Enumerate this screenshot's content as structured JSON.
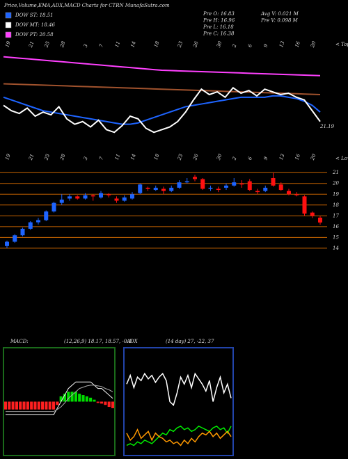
{
  "header": {
    "title": "Price,Volume,EMA,ADX,MACD Charts for CTRN  MunafaSutra.com",
    "legend": [
      {
        "text": "DOW ST: 18.51",
        "color": "#1e64ff"
      },
      {
        "text": "DOW MT: 18.46",
        "color": "#ffffff"
      },
      {
        "text": "DOW PT: 20.58",
        "color": "#ff40ff"
      }
    ],
    "info_left": [
      "Pre  O: 16.83",
      "Pre  H: 16.96",
      "Pre  L: 16.18",
      "Pre  C: 16.38"
    ],
    "info_right": [
      "Avg  V: 0.021  M",
      "Pre  V: 0.098  M"
    ]
  },
  "chart_data": [
    {
      "type": "line",
      "label": "< Tops",
      "annotation": "21.19",
      "ylim": [
        16.5,
        23.2
      ],
      "series": [
        {
          "color": "#ff40ff",
          "values": [
            22.6,
            22.55,
            22.5,
            22.45,
            22.4,
            22.35,
            22.3,
            22.25,
            22.2,
            22.15,
            22.1,
            22.05,
            22.0,
            21.95,
            21.9,
            21.85,
            21.8,
            21.75,
            21.7,
            21.65,
            21.6,
            21.58,
            21.56,
            21.54,
            21.52,
            21.5,
            21.48,
            21.46,
            21.44,
            21.42,
            21.4,
            21.38,
            21.36,
            21.34,
            21.32,
            21.3,
            21.28,
            21.26,
            21.24,
            21.22,
            21.2
          ]
        },
        {
          "color": "#a0522d",
          "values": [
            20.6,
            20.58,
            20.56,
            20.54,
            20.52,
            20.5,
            20.48,
            20.46,
            20.44,
            20.42,
            20.4,
            20.38,
            20.36,
            20.34,
            20.32,
            20.3,
            20.28,
            20.26,
            20.24,
            20.22,
            20.2,
            20.18,
            20.16,
            20.14,
            20.12,
            20.1,
            20.08,
            20.06,
            20.04,
            20.02,
            20.0,
            19.98,
            19.96,
            19.94,
            19.92,
            19.9,
            19.88,
            19.86,
            19.84,
            19.82,
            19.8
          ]
        },
        {
          "color": "#1e64ff",
          "values": [
            19.6,
            19.4,
            19.2,
            19.0,
            18.8,
            18.6,
            18.5,
            18.4,
            18.3,
            18.2,
            18.1,
            18.0,
            17.9,
            17.8,
            17.7,
            17.6,
            17.6,
            17.7,
            17.9,
            18.1,
            18.3,
            18.5,
            18.7,
            18.9,
            19.0,
            19.1,
            19.2,
            19.3,
            19.4,
            19.5,
            19.6,
            19.6,
            19.6,
            19.6,
            19.7,
            19.7,
            19.6,
            19.5,
            19.3,
            19.0,
            18.5
          ]
        },
        {
          "color": "#ffffff",
          "values": [
            19.0,
            18.6,
            18.4,
            18.8,
            18.2,
            18.5,
            18.3,
            18.9,
            18.0,
            17.6,
            17.8,
            17.4,
            17.9,
            17.2,
            17.0,
            17.5,
            18.2,
            18.0,
            17.3,
            17.0,
            17.2,
            17.4,
            17.8,
            18.5,
            19.4,
            20.2,
            19.8,
            20.0,
            19.6,
            20.3,
            19.9,
            20.1,
            19.7,
            20.2,
            20.0,
            19.8,
            19.9,
            19.6,
            19.4,
            18.6,
            17.8
          ]
        }
      ]
    },
    {
      "type": "candlestick",
      "label": "< Lows",
      "up_color": "#1e64ff",
      "down_color": "#ff1010",
      "grid_color": "#c86400",
      "x": [
        "19",
        null,
        null,
        "21",
        null,
        "25",
        null,
        "28",
        null,
        null,
        "3",
        null,
        "7",
        null,
        "11",
        null,
        "14",
        null,
        null,
        "18",
        null,
        null,
        "23",
        null,
        "26",
        null,
        null,
        "30",
        null,
        "2",
        null,
        "6",
        null,
        "9",
        null,
        "13",
        null,
        "16",
        null,
        "20",
        null
      ],
      "open": [
        14.2,
        14.6,
        15.2,
        15.8,
        16.4,
        16.6,
        17.4,
        18.2,
        18.6,
        18.8,
        18.6,
        18.9,
        18.7,
        19.0,
        18.6,
        18.4,
        18.6,
        19.1,
        19.6,
        19.4,
        19.5,
        19.3,
        19.6,
        20.1,
        20.6,
        20.4,
        19.5,
        19.5,
        19.6,
        19.8,
        20.0,
        20.2,
        19.3,
        19.3,
        20.5,
        19.9,
        19.3,
        19.0,
        18.8,
        17.3,
        16.83
      ],
      "high": [
        14.7,
        15.3,
        15.9,
        16.5,
        16.8,
        17.5,
        18.3,
        19.0,
        19.0,
        18.9,
        19.1,
        19.0,
        19.3,
        19.1,
        18.8,
        18.9,
        19.2,
        20.0,
        19.7,
        19.8,
        19.7,
        19.8,
        20.3,
        20.5,
        20.8,
        20.5,
        19.8,
        19.7,
        20.0,
        20.5,
        20.3,
        20.4,
        19.5,
        19.8,
        21.0,
        20.1,
        19.5,
        19.2,
        18.9,
        17.4,
        16.96
      ],
      "low": [
        14.0,
        14.5,
        15.1,
        15.7,
        16.2,
        16.5,
        17.3,
        18.0,
        18.4,
        18.5,
        18.5,
        18.4,
        18.6,
        18.7,
        18.2,
        18.3,
        18.5,
        19.0,
        19.3,
        19.3,
        19.0,
        19.2,
        19.5,
        20.0,
        20.2,
        19.4,
        19.3,
        19.2,
        19.4,
        19.7,
        19.6,
        19.3,
        19.0,
        19.2,
        19.7,
        19.3,
        18.9,
        18.8,
        17.0,
        16.8,
        16.18
      ],
      "close": [
        14.6,
        15.2,
        15.8,
        16.4,
        16.6,
        17.4,
        18.2,
        18.5,
        18.8,
        18.6,
        18.9,
        18.8,
        19.1,
        18.9,
        18.4,
        18.7,
        19.0,
        19.9,
        19.5,
        19.6,
        19.3,
        19.6,
        20.1,
        20.2,
        20.4,
        19.5,
        19.6,
        19.4,
        19.8,
        20.1,
        19.9,
        19.4,
        19.2,
        19.6,
        19.8,
        19.4,
        19.0,
        18.9,
        17.2,
        17.0,
        16.38
      ],
      "ylim": [
        13.8,
        21.4
      ],
      "yticks": [
        21,
        20,
        19,
        18,
        17,
        16,
        15,
        14
      ]
    },
    {
      "type": "macd",
      "title": "MACD:",
      "subtitle": "(12,26,9) 18.17, 18.57, -0.4",
      "ylim": [
        -0.8,
        0.8
      ],
      "up_color": "#00dd00",
      "down_color": "#ff2020",
      "histogram": [
        -0.12,
        -0.12,
        -0.12,
        -0.12,
        -0.12,
        -0.12,
        -0.12,
        -0.12,
        -0.12,
        -0.12,
        -0.12,
        -0.12,
        -0.12,
        -0.12,
        -0.05,
        0.08,
        0.12,
        0.15,
        0.15,
        0.15,
        0.12,
        0.1,
        0.08,
        0.06,
        0.03,
        -0.02,
        -0.03,
        -0.05,
        -0.08,
        -0.1
      ],
      "series": [
        {
          "color": "#ffffff",
          "values": [
            -0.2,
            -0.2,
            -0.2,
            -0.2,
            -0.2,
            -0.2,
            -0.2,
            -0.2,
            -0.2,
            -0.2,
            -0.2,
            -0.2,
            -0.2,
            -0.2,
            -0.1,
            0.0,
            0.1,
            0.2,
            0.25,
            0.3,
            0.3,
            0.3,
            0.3,
            0.3,
            0.25,
            0.2,
            0.2,
            0.15,
            0.1,
            0.05
          ]
        },
        {
          "color": "#aaaaaa",
          "values": [
            -0.15,
            -0.15,
            -0.15,
            -0.15,
            -0.15,
            -0.15,
            -0.15,
            -0.15,
            -0.15,
            -0.15,
            -0.15,
            -0.15,
            -0.15,
            -0.15,
            -0.12,
            -0.08,
            -0.02,
            0.05,
            0.1,
            0.15,
            0.2,
            0.22,
            0.24,
            0.25,
            0.25,
            0.24,
            0.23,
            0.2,
            0.18,
            0.15
          ]
        }
      ]
    },
    {
      "type": "adx",
      "title": "ADX",
      "subtitle": "(14 day) 27, -22, 37",
      "ylim": [
        0,
        60
      ],
      "series": [
        {
          "color": "#ffffff",
          "values": [
            40,
            45,
            38,
            44,
            42,
            46,
            43,
            45,
            41,
            44,
            46,
            42,
            30,
            28,
            35,
            44,
            40,
            45,
            38,
            46,
            43,
            40,
            36,
            42,
            30,
            38,
            44,
            35,
            40,
            32
          ]
        },
        {
          "color": "#00ee00",
          "values": [
            5,
            6,
            5,
            7,
            6,
            8,
            7,
            6,
            8,
            10,
            12,
            11,
            14,
            13,
            15,
            16,
            14,
            15,
            13,
            14,
            16,
            15,
            14,
            13,
            15,
            16,
            14,
            15,
            12,
            16
          ]
        },
        {
          "color": "#ff9900",
          "values": [
            12,
            8,
            10,
            14,
            9,
            11,
            13,
            8,
            12,
            10,
            9,
            7,
            8,
            6,
            7,
            5,
            8,
            6,
            9,
            7,
            10,
            12,
            11,
            13,
            10,
            12,
            9,
            11,
            13,
            10
          ]
        }
      ]
    }
  ]
}
